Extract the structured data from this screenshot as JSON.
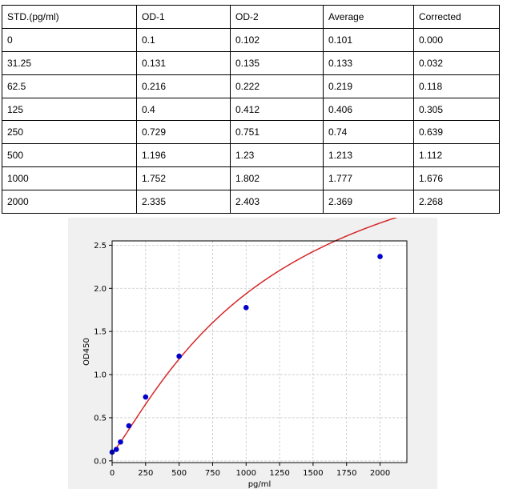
{
  "table": {
    "headers": [
      "STD.(pg/ml)",
      "OD-1",
      "OD-2",
      "Average",
      "Corrected"
    ],
    "rows": [
      [
        "0",
        "0.1",
        "0.102",
        "0.101",
        "0.000"
      ],
      [
        "31.25",
        "0.131",
        "0.135",
        "0.133",
        "0.032"
      ],
      [
        "62.5",
        "0.216",
        "0.222",
        "0.219",
        "0.118"
      ],
      [
        "125",
        "0.4",
        "0.412",
        "0.406",
        "0.305"
      ],
      [
        "250",
        "0.729",
        "0.751",
        "0.74",
        "0.639"
      ],
      [
        "500",
        "1.196",
        "1.23",
        "1.213",
        "1.112"
      ],
      [
        "1000",
        "1.752",
        "1.802",
        "1.777",
        "1.676"
      ],
      [
        "2000",
        "2.335",
        "2.403",
        "2.369",
        "2.268"
      ]
    ]
  },
  "chart_data": {
    "type": "scatter",
    "xlabel": "pg/ml",
    "ylabel": "OD450",
    "xlim": [
      0,
      2200
    ],
    "ylim": [
      -0.02,
      2.55
    ],
    "xticks": [
      "0",
      "250",
      "500",
      "750",
      "1000",
      "1250",
      "1500",
      "1750",
      "2000"
    ],
    "yticks": [
      "0.0",
      "0.5",
      "1.0",
      "1.5",
      "2.0",
      "2.5"
    ],
    "grid": true,
    "series": [
      {
        "x": [
          0,
          31.25,
          62.5,
          125,
          250,
          500,
          1000,
          2000
        ],
        "y": [
          0.101,
          0.133,
          0.219,
          0.406,
          0.74,
          1.213,
          1.777,
          2.369
        ],
        "color": "#0000cc"
      }
    ],
    "fit_curve": {
      "color": "#d62728"
    }
  }
}
